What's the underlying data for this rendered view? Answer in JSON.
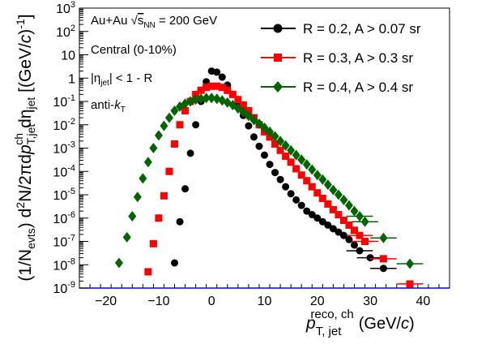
{
  "chart_data": {
    "type": "scatter",
    "x_axis": {
      "range": [
        -25,
        45
      ],
      "ticks": [
        -20,
        -10,
        0,
        10,
        20,
        30,
        40
      ],
      "tick_labels": [
        "−20",
        "−10",
        "0",
        "10",
        "20",
        "30",
        "40"
      ],
      "title": "p_T,jet^reco,ch (GeV/c)"
    },
    "y_axis": {
      "scale": "log",
      "range": [
        1e-09,
        1000
      ],
      "ticks": [
        1e-09,
        1e-08,
        1e-07,
        1e-06,
        1e-05,
        0.0001,
        0.001,
        0.01,
        0.1,
        1,
        10,
        100,
        1000
      ],
      "tick_labels": [
        "10^-9",
        "10^-8",
        "10^-7",
        "10^-6",
        "10^-5",
        "10^-4",
        "10^-3",
        "10^-2",
        "10^-1",
        "1",
        "10",
        "10^2",
        "10^3"
      ],
      "title": "(1/N_evts) d²N/2πdp_T,jet^ch dη_jet [(GeV/c)^-1]"
    },
    "annotations": [
      "Au+Au √s_NN = 200 GeV",
      "Central (0-10%)",
      "|η_jet| < 1 - R",
      "anti-k_T"
    ],
    "legend_position": "top-right",
    "grid": false,
    "series": [
      {
        "name": "R = 0.2, A > 0.07 sr",
        "marker": "circle",
        "color": "#000000",
        "x": [
          -7,
          -6,
          -5,
          -4,
          -3,
          -2,
          -1,
          0,
          1,
          2,
          3,
          4,
          5,
          6,
          7,
          8,
          9,
          10,
          11,
          12,
          13,
          14,
          15,
          16,
          17,
          18,
          19,
          20,
          21,
          22,
          23,
          24,
          25,
          26,
          27,
          28,
          30,
          32.5
        ],
        "y": [
          1.2e-08,
          7e-07,
          1.8e-05,
          0.0006,
          0.01,
          0.1,
          0.7,
          2,
          1.8,
          1.1,
          0.5,
          0.2,
          0.07,
          0.025,
          0.009,
          0.003,
          0.0012,
          0.0005,
          0.0002,
          9e-05,
          4.5e-05,
          2.2e-05,
          1.1e-05,
          6e-06,
          3.5e-06,
          2e-06,
          1.4e-06,
          1e-06,
          7e-07,
          5e-07,
          3.5e-07,
          2.5e-07,
          1.8e-07,
          1.2e-07,
          7e-08,
          4e-08,
          2e-08,
          7e-09
        ]
      },
      {
        "name": "R = 0.3, A > 0.3 sr",
        "marker": "square",
        "color": "#ff0000",
        "x": [
          -12,
          -11,
          -10,
          -9,
          -8,
          -7,
          -6,
          -5,
          -4,
          -3,
          -2,
          -1,
          0,
          1,
          2,
          3,
          4,
          5,
          6,
          7,
          8,
          9,
          10,
          11,
          12,
          13,
          14,
          15,
          16,
          17,
          18,
          19,
          20,
          21,
          22,
          23,
          24,
          25,
          26,
          27,
          28,
          29,
          32.5,
          37.5
        ],
        "y": [
          5e-09,
          8e-08,
          1e-06,
          9e-06,
          0.0001,
          0.0015,
          0.01,
          0.04,
          0.1,
          0.2,
          0.3,
          0.4,
          0.45,
          0.45,
          0.4,
          0.3,
          0.2,
          0.12,
          0.07,
          0.04,
          0.02,
          0.01,
          0.005,
          0.003,
          0.0015,
          0.0008,
          0.00045,
          0.00025,
          0.00013,
          7e-05,
          4e-05,
          2.2e-05,
          1.2e-05,
          7e-06,
          4e-06,
          2.3e-06,
          1.4e-06,
          8e-07,
          5e-07,
          3e-07,
          1.8e-07,
          1e-07,
          1.8e-08,
          1.5e-09
        ]
      },
      {
        "name": "R = 0.4, A > 0.4 sr",
        "marker": "diamond",
        "color": "#006400",
        "x": [
          -17.5,
          -16,
          -15,
          -14,
          -13,
          -12,
          -11,
          -10,
          -9,
          -8,
          -7,
          -6,
          -5,
          -4,
          -3,
          -2,
          -1,
          0,
          1,
          2,
          3,
          4,
          5,
          6,
          7,
          8,
          9,
          10,
          11,
          12,
          13,
          14,
          15,
          16,
          17,
          18,
          19,
          20,
          21,
          22,
          23,
          24,
          25,
          26,
          27,
          28,
          29,
          32.5,
          37.5
        ],
        "y": [
          1.2e-08,
          1.5e-07,
          1.2e-06,
          8e-06,
          5e-05,
          0.00025,
          0.001,
          0.0035,
          0.009,
          0.02,
          0.04,
          0.06,
          0.08,
          0.1,
          0.12,
          0.13,
          0.14,
          0.14,
          0.13,
          0.11,
          0.09,
          0.07,
          0.05,
          0.035,
          0.024,
          0.016,
          0.011,
          0.0075,
          0.005,
          0.0032,
          0.002,
          0.0013,
          0.0008,
          0.0005,
          0.00032,
          0.0002,
          0.00012,
          7e-05,
          4.5e-05,
          2.7e-05,
          1.6e-05,
          1e-05,
          6e-06,
          3.5e-06,
          2e-06,
          1.2e-06,
          7e-07,
          1.4e-07,
          1.1e-08
        ]
      }
    ]
  }
}
